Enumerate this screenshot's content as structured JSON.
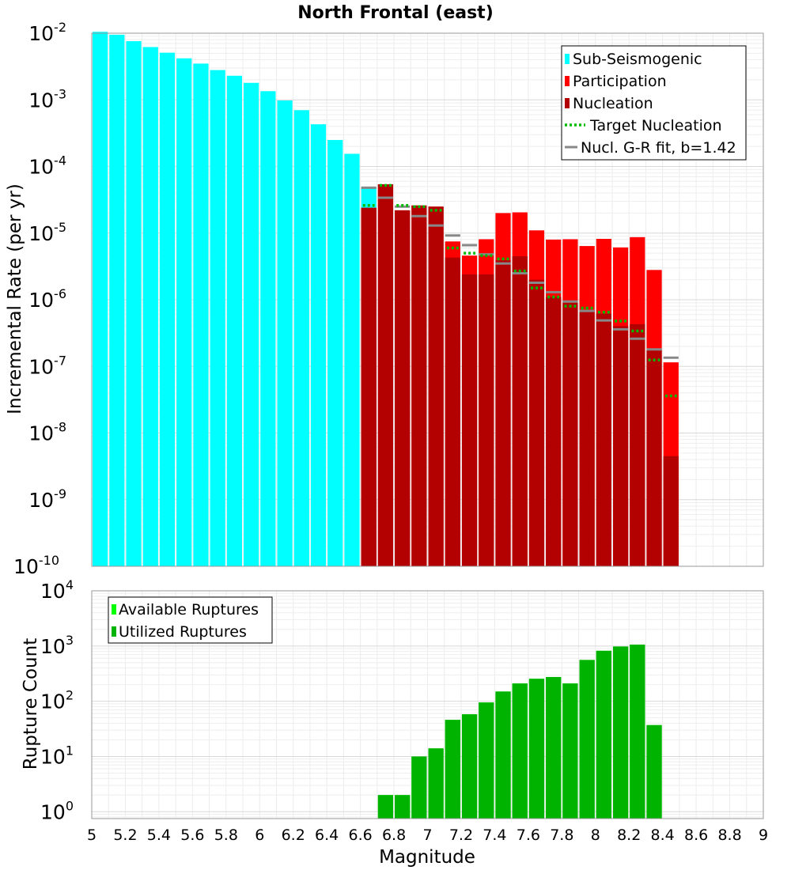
{
  "chart_data": [
    {
      "type": "bar",
      "title": "North Frontal (east)",
      "ylabel": "Incremental Rate (per yr)",
      "xlabel": "",
      "xlim": [
        5,
        9
      ],
      "ylim": [
        1e-10,
        0.01
      ],
      "yscale": "log",
      "ytick_labels": [
        {
          "base": "10",
          "exp": "-2",
          "value": 0.01
        },
        {
          "base": "10",
          "exp": "-3",
          "value": 0.001
        },
        {
          "base": "10",
          "exp": "-4",
          "value": 0.0001
        },
        {
          "base": "10",
          "exp": "-5",
          "value": 1e-05
        },
        {
          "base": "10",
          "exp": "-6",
          "value": 1e-06
        },
        {
          "base": "10",
          "exp": "-7",
          "value": 1e-07
        },
        {
          "base": "10",
          "exp": "-8",
          "value": 1e-08
        },
        {
          "base": "10",
          "exp": "-9",
          "value": 1e-09
        },
        {
          "base": "10",
          "exp": "-10",
          "value": 1e-10
        }
      ],
      "legend_position": "top-right",
      "legend": [
        {
          "label": "Sub-Seismogenic",
          "kind": "bar",
          "color": "#00ffff"
        },
        {
          "label": "Participation",
          "kind": "bar",
          "color": "#ff0000"
        },
        {
          "label": "Nucleation",
          "kind": "bar",
          "color": "#b30000"
        },
        {
          "label": "Target Nucleation",
          "kind": "dotted-line",
          "color": "#00bb00"
        },
        {
          "label": "Nucl. G-R fit, b=1.42",
          "kind": "line",
          "color": "#888888"
        }
      ],
      "bin_width": 0.1,
      "series": [
        {
          "name": "Sub-Seismogenic",
          "color": "#00ffff",
          "x": [
            5.05,
            5.15,
            5.25,
            5.35,
            5.45,
            5.55,
            5.65,
            5.75,
            5.85,
            5.95,
            6.05,
            6.15,
            6.25,
            6.35,
            6.45,
            6.55,
            6.65
          ],
          "values": [
            0.0105,
            0.0095,
            0.0076,
            0.0062,
            0.0051,
            0.0042,
            0.0035,
            0.0028,
            0.0023,
            0.0018,
            0.00135,
            0.00098,
            0.0007,
            0.00043,
            0.00025,
            0.000155,
            4.8e-05
          ]
        },
        {
          "name": "Participation",
          "color": "#ff0000",
          "x": [
            6.65,
            6.75,
            6.85,
            6.95,
            7.05,
            7.15,
            7.25,
            7.35,
            7.45,
            7.55,
            7.65,
            7.75,
            7.85,
            7.95,
            8.05,
            8.15,
            8.25,
            8.35,
            8.45
          ],
          "values": [
            2.4e-05,
            5.4e-05,
            2.2e-05,
            2.6e-05,
            2.5e-05,
            7.5e-06,
            4.6e-06,
            8.1e-06,
            2e-05,
            2.05e-05,
            1.1e-05,
            8e-06,
            8.1e-06,
            6.4e-06,
            8.2e-06,
            6.1e-06,
            8.7e-06,
            2.8e-06,
            1.15e-07
          ]
        },
        {
          "name": "Nucleation",
          "color": "#b30000",
          "x": [
            6.65,
            6.75,
            6.85,
            6.95,
            7.05,
            7.15,
            7.25,
            7.35,
            7.45,
            7.55,
            7.65,
            7.75,
            7.85,
            7.95,
            8.05,
            8.15,
            8.25,
            8.35,
            8.45
          ],
          "values": [
            2.4e-05,
            5.4e-05,
            2.2e-05,
            2.6e-05,
            2.5e-05,
            4.3e-06,
            2.4e-06,
            2.4e-06,
            3.9e-06,
            4.5e-06,
            2e-06,
            1.1e-06,
            9e-07,
            7e-07,
            6.2e-07,
            4e-07,
            4.3e-07,
            1.8e-07,
            4.5e-09
          ]
        },
        {
          "name": "Target Nucleation",
          "color": "#00bb00",
          "x": [
            6.65,
            6.75,
            6.85,
            6.95,
            7.05,
            7.15,
            7.25,
            7.35,
            7.45,
            7.55,
            7.65,
            7.75,
            7.85,
            7.95,
            8.05,
            8.15,
            8.25,
            8.35,
            8.45
          ],
          "values": [
            2.6e-05,
            5.2e-05,
            2.6e-05,
            2.5e-05,
            2.2e-05,
            6e-06,
            5e-06,
            4.6e-06,
            4.1e-06,
            2.7e-06,
            1.5e-06,
            1.1e-06,
            8e-07,
            7.5e-07,
            6.5e-07,
            4.8e-07,
            3.4e-07,
            1.25e-07,
            3.6e-08
          ]
        },
        {
          "name": "Nucl. G-R fit, b=1.42",
          "color": "#888888",
          "x": [
            6.65,
            6.75,
            6.85,
            6.95,
            7.05,
            7.15,
            7.25,
            7.35,
            7.45,
            7.55,
            7.65,
            7.75,
            7.85,
            7.95,
            8.05,
            8.15,
            8.25,
            8.35,
            8.45
          ],
          "values": [
            4.8e-05,
            3.4e-05,
            2.5e-05,
            1.8e-05,
            1.3e-05,
            9.2e-06,
            6.6e-06,
            4.8e-06,
            3.5e-06,
            2.5e-06,
            1.8e-06,
            1.3e-06,
            9.4e-07,
            6.8e-07,
            4.9e-07,
            3.6e-07,
            2.6e-07,
            1.8e-07,
            1.35e-07
          ]
        }
      ]
    },
    {
      "type": "bar",
      "title": "",
      "ylabel": "Rupture Count",
      "xlabel": "Magnitude",
      "xlim": [
        5,
        9
      ],
      "ylim": [
        0.75,
        10000
      ],
      "yscale": "log",
      "xticks": [
        "5",
        "5.2",
        "5.4",
        "5.6",
        "5.8",
        "6",
        "6.2",
        "6.4",
        "6.6",
        "6.8",
        "7",
        "7.2",
        "7.4",
        "7.6",
        "7.8",
        "8",
        "8.2",
        "8.4",
        "8.6",
        "8.8",
        "9"
      ],
      "ytick_labels": [
        {
          "base": "10",
          "exp": "4",
          "value": 10000
        },
        {
          "base": "10",
          "exp": "3",
          "value": 1000
        },
        {
          "base": "10",
          "exp": "2",
          "value": 100
        },
        {
          "base": "10",
          "exp": "1",
          "value": 10
        },
        {
          "base": "10",
          "exp": "0",
          "value": 1
        }
      ],
      "legend_position": "top-left",
      "legend": [
        {
          "label": "Available Ruptures",
          "kind": "bar",
          "color": "#00ff00"
        },
        {
          "label": "Utilized Ruptures",
          "kind": "bar",
          "color": "#00b300"
        }
      ],
      "bin_width": 0.1,
      "series": [
        {
          "name": "Available Ruptures",
          "color": "#00ff00",
          "x": [
            6.75,
            6.85,
            6.95,
            7.05,
            7.15,
            7.25,
            7.35,
            7.45,
            7.55,
            7.65,
            7.75,
            7.85,
            7.95,
            8.05,
            8.15,
            8.25,
            8.35
          ],
          "values": [
            2,
            2,
            10,
            14,
            46,
            58,
            95,
            150,
            210,
            255,
            275,
            210,
            560,
            820,
            980,
            1060,
            37
          ]
        },
        {
          "name": "Utilized Ruptures",
          "color": "#00b300",
          "x": [
            6.75,
            6.85,
            6.95,
            7.05,
            7.15,
            7.25,
            7.35,
            7.45,
            7.55,
            7.65,
            7.75,
            7.85,
            7.95,
            8.05,
            8.15,
            8.25,
            8.35
          ],
          "values": [
            2,
            2,
            10,
            14,
            46,
            58,
            95,
            150,
            210,
            255,
            275,
            210,
            560,
            820,
            980,
            1060,
            37
          ]
        }
      ]
    }
  ]
}
